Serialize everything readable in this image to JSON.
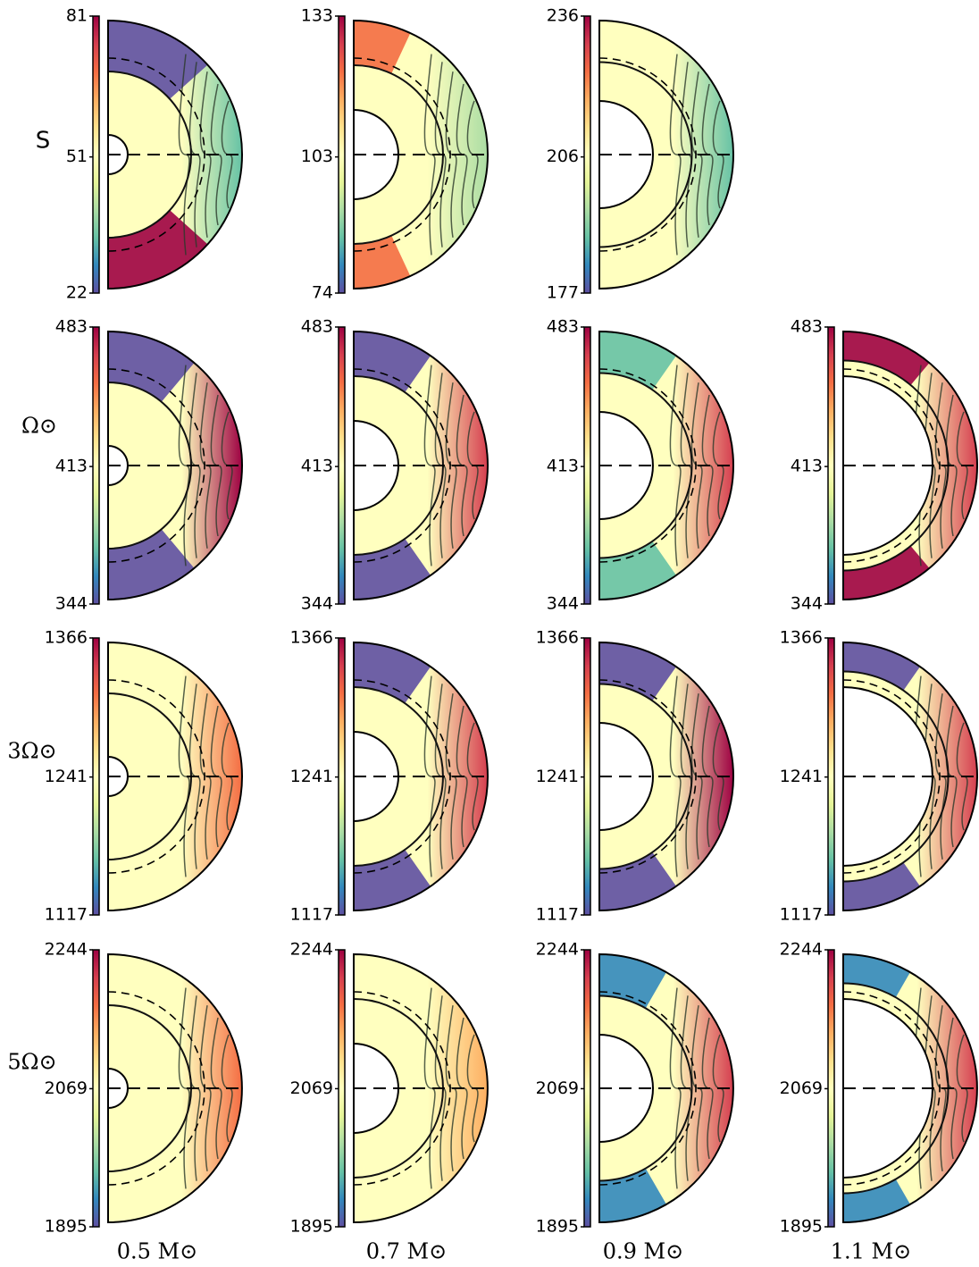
{
  "rows": [
    "S",
    "Ω⊙",
    "3Ω⊙",
    "5Ω⊙"
  ],
  "columns": [
    "0.5 M⊙",
    "0.7 M⊙",
    "0.9 M⊙",
    "1.1 M⊙"
  ],
  "chart_data": [
    {
      "type": "contour",
      "clim": [
        22,
        81
      ],
      "cticks": [
        22,
        51,
        81
      ]
    },
    {
      "type": "contour",
      "clim": [
        74,
        133
      ],
      "cticks": [
        74,
        103,
        133
      ]
    },
    {
      "type": "contour",
      "clim": [
        177,
        236
      ],
      "cticks": [
        177,
        206,
        236
      ]
    },
    {
      "type": "contour",
      "clim": [
        344,
        483
      ],
      "cticks": [
        344,
        413,
        483
      ]
    },
    {
      "type": "contour",
      "clim": [
        344,
        483
      ],
      "cticks": [
        344,
        413,
        483
      ]
    },
    {
      "type": "contour",
      "clim": [
        344,
        483
      ],
      "cticks": [
        344,
        413,
        483
      ]
    },
    {
      "type": "contour",
      "clim": [
        344,
        483
      ],
      "cticks": [
        344,
        413,
        483
      ]
    },
    {
      "type": "contour",
      "clim": [
        1117,
        1366
      ],
      "cticks": [
        1117,
        1241,
        1366
      ]
    },
    {
      "type": "contour",
      "clim": [
        1117,
        1366
      ],
      "cticks": [
        1117,
        1241,
        1366
      ]
    },
    {
      "type": "contour",
      "clim": [
        1117,
        1366
      ],
      "cticks": [
        1117,
        1241,
        1366
      ]
    },
    {
      "type": "contour",
      "clim": [
        1117,
        1366
      ],
      "cticks": [
        1117,
        1241,
        1366
      ]
    },
    {
      "type": "contour",
      "clim": [
        1895,
        2244
      ],
      "cticks": [
        1895,
        2069,
        2244
      ]
    },
    {
      "type": "contour",
      "clim": [
        1895,
        2244
      ],
      "cticks": [
        1895,
        2069,
        2244
      ]
    },
    {
      "type": "contour",
      "clim": [
        1895,
        2244
      ],
      "cticks": [
        1895,
        2069,
        2244
      ]
    },
    {
      "type": "contour",
      "clim": [
        1895,
        2244
      ],
      "cticks": [
        1895,
        2069,
        2244
      ]
    }
  ]
}
